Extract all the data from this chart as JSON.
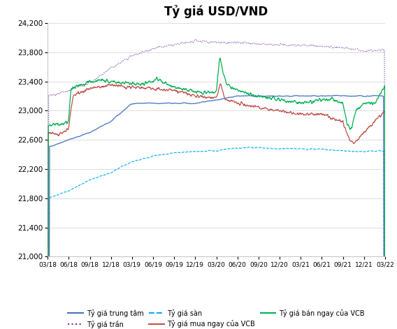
{
  "title": "Tỷ giá USD/VND",
  "title_fontsize": 12,
  "background_color": "#ffffff",
  "ylim": [
    21000,
    24200
  ],
  "yticks": [
    21000,
    21400,
    21800,
    22200,
    22600,
    23000,
    23400,
    23800,
    24200
  ],
  "xtick_labels": [
    "03/18",
    "06/18",
    "09/18",
    "12/18",
    "03/19",
    "06/19",
    "09/19",
    "12/19",
    "03/20",
    "06/20",
    "09/20",
    "12/20",
    "03/21",
    "06/21",
    "09/21",
    "12/21",
    "03/22"
  ],
  "colors": {
    "trung_tam": "#4472C4",
    "tran": "#7030A0",
    "san": "#00B0F0",
    "mua": "#C0504D",
    "ban": "#00B050"
  },
  "legend_labels": [
    "Tỷ giá trung tâm",
    "Tỷ giá trần",
    "Tỷ giá sàn",
    "Tỷ giá mua ngay của VCB",
    "Tỷ giá bán ngay của VCB"
  ]
}
